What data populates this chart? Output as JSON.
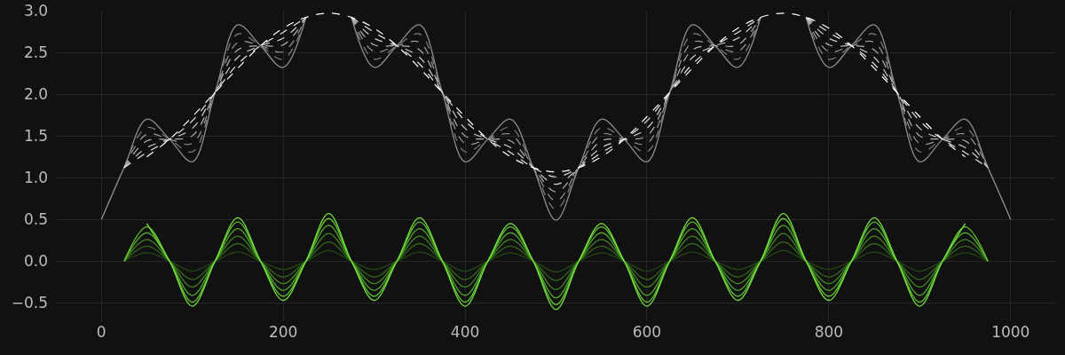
{
  "chart_data": {
    "type": "line",
    "xlim": [
      -50,
      1050
    ],
    "ylim": [
      -0.72,
      3.0
    ],
    "xticks": [
      0,
      200,
      400,
      600,
      800,
      1000
    ],
    "yticks": [
      {
        "value": -0.5,
        "label": "−0.5"
      },
      {
        "value": 0,
        "label": "0.0"
      },
      {
        "value": 0.5,
        "label": "0.5"
      },
      {
        "value": 1,
        "label": "1.0"
      },
      {
        "value": 1.5,
        "label": "1.5"
      },
      {
        "value": 2,
        "label": "2.0"
      },
      {
        "value": 2.5,
        "label": "2.5"
      },
      {
        "value": 3,
        "label": "3.0"
      }
    ],
    "grid": true,
    "series": [
      {
        "color": "#8c8c8c",
        "line_style": "solid",
        "x": [
          0,
          25,
          50,
          75,
          100,
          125,
          150,
          175,
          200,
          225,
          250,
          275,
          300,
          325,
          350,
          375,
          400,
          425,
          450,
          475,
          500,
          525,
          550,
          575,
          600,
          625,
          650,
          675,
          700,
          725,
          750,
          775,
          800,
          825,
          850,
          875,
          900,
          925,
          950,
          975,
          1000
        ],
        "values": [
          0.5,
          1.12,
          1.7,
          1.46,
          1.19,
          2.02,
          2.83,
          2.58,
          2.32,
          2.92,
          null,
          2.92,
          2.32,
          2.58,
          2.83,
          2.02,
          1.19,
          1.46,
          1.7,
          1.12,
          0.49,
          1.12,
          1.7,
          1.46,
          1.19,
          2.02,
          2.83,
          2.58,
          2.32,
          2.92,
          null,
          2.92,
          2.32,
          2.58,
          2.83,
          2.02,
          1.19,
          1.46,
          1.7,
          1.12,
          0.5
        ]
      },
      {
        "color": "#808080",
        "line_style": "dashed",
        "x": [
          25,
          50,
          75,
          100,
          125,
          150,
          175,
          200,
          225,
          250,
          275,
          300,
          325,
          350,
          375,
          400,
          425,
          450,
          475,
          500,
          525,
          550,
          575,
          600,
          625,
          650,
          675,
          700,
          725,
          750,
          775,
          800,
          825,
          850,
          875,
          900,
          925,
          950,
          975
        ],
        "values": [
          1.12,
          1.6,
          1.46,
          1.31,
          2.02,
          2.72,
          2.58,
          2.42,
          2.92,
          null,
          2.92,
          2.42,
          2.58,
          2.72,
          2.02,
          1.31,
          1.46,
          1.6,
          1.12,
          0.62,
          1.12,
          1.6,
          1.46,
          1.31,
          2.02,
          2.72,
          2.58,
          2.42,
          2.92,
          null,
          2.92,
          2.42,
          2.58,
          2.72,
          2.02,
          1.31,
          1.46,
          1.6,
          1.12
        ]
      },
      {
        "color": "#999999",
        "line_style": "dashed",
        "x": [
          25,
          50,
          75,
          100,
          125,
          150,
          175,
          200,
          225,
          250,
          275,
          300,
          325,
          350,
          375,
          400,
          425,
          450,
          475,
          500,
          525,
          550,
          575,
          600,
          625,
          650,
          675,
          700,
          725,
          750,
          775,
          800,
          825,
          850,
          875,
          900,
          925,
          950,
          975
        ],
        "values": [
          1.12,
          1.52,
          1.46,
          1.41,
          2.02,
          2.62,
          2.58,
          2.51,
          2.92,
          null,
          2.92,
          2.51,
          2.58,
          2.62,
          2.02,
          1.41,
          1.46,
          1.52,
          1.12,
          0.72,
          1.12,
          1.52,
          1.46,
          1.41,
          2.02,
          2.62,
          2.58,
          2.51,
          2.92,
          null,
          2.92,
          2.51,
          2.58,
          2.62,
          2.02,
          1.41,
          1.46,
          1.52,
          1.12
        ]
      },
      {
        "color": "#b3b3b3",
        "line_style": "dashed",
        "x": [
          25,
          50,
          75,
          100,
          125,
          150,
          175,
          200,
          225,
          250,
          275,
          300,
          325,
          350,
          375,
          400,
          425,
          450,
          475,
          500,
          525,
          550,
          575,
          600,
          625,
          650,
          675,
          700,
          725,
          750,
          775,
          800,
          825,
          850,
          875,
          900,
          925,
          950,
          975
        ],
        "values": [
          1.12,
          1.44,
          1.46,
          1.5,
          2.02,
          2.53,
          2.58,
          2.59,
          2.92,
          null,
          2.92,
          2.59,
          2.58,
          2.53,
          2.02,
          1.5,
          1.46,
          1.44,
          1.12,
          0.83,
          1.12,
          1.44,
          1.46,
          1.5,
          2.02,
          2.53,
          2.58,
          2.59,
          2.92,
          null,
          2.92,
          2.59,
          2.58,
          2.53,
          2.02,
          1.5,
          1.46,
          1.44,
          1.12
        ]
      },
      {
        "color": "#cccccc",
        "line_style": "dashed",
        "x": [
          25,
          50,
          75,
          100,
          125,
          150,
          175,
          200,
          225,
          250,
          275,
          300,
          325,
          350,
          375,
          400,
          425,
          450,
          475,
          500,
          525,
          550,
          575,
          600,
          625,
          650,
          675,
          700,
          725,
          750,
          775,
          800,
          825,
          850,
          875,
          900,
          925,
          950,
          975
        ],
        "values": [
          1.12,
          1.36,
          1.46,
          1.59,
          2.02,
          2.44,
          2.58,
          2.67,
          2.92,
          null,
          2.92,
          2.67,
          2.58,
          2.44,
          2.02,
          1.59,
          1.46,
          1.36,
          1.12,
          0.92,
          1.12,
          1.36,
          1.46,
          1.59,
          2.02,
          2.44,
          2.58,
          2.67,
          2.92,
          null,
          2.92,
          2.67,
          2.58,
          2.44,
          2.02,
          1.59,
          1.46,
          1.36,
          1.12
        ]
      },
      {
        "color": "#e6e6e6",
        "line_style": "dashed",
        "x": [
          25,
          50,
          75,
          100,
          125,
          150,
          175,
          200,
          225,
          250,
          275,
          300,
          325,
          350,
          375,
          400,
          425,
          450,
          475,
          500,
          525,
          550,
          575,
          600,
          625,
          650,
          675,
          700,
          725,
          750,
          775,
          800,
          825,
          850,
          875,
          900,
          925,
          950,
          975
        ],
        "values": [
          1.12,
          1.3,
          1.46,
          1.68,
          2.02,
          2.36,
          2.58,
          2.74,
          2.92,
          null,
          2.92,
          2.74,
          2.58,
          2.36,
          2.02,
          1.68,
          1.46,
          1.3,
          1.12,
          1.01,
          1.12,
          1.3,
          1.46,
          1.68,
          2.02,
          2.36,
          2.58,
          2.74,
          2.92,
          null,
          2.92,
          2.74,
          2.58,
          2.36,
          2.02,
          1.68,
          1.46,
          1.3,
          1.12
        ]
      },
      {
        "color": "#ffffff",
        "line_style": "dashed",
        "x": [
          50,
          75,
          100,
          125,
          150,
          175,
          200,
          225,
          250,
          275,
          300,
          325,
          350,
          375,
          400,
          425,
          450,
          475,
          500,
          525,
          550,
          575,
          600,
          625,
          650,
          675,
          700,
          725,
          750,
          775,
          800,
          825,
          850,
          875,
          900,
          925,
          950
        ],
        "values": [
          1.25,
          1.46,
          1.73,
          2.02,
          2.31,
          2.58,
          2.79,
          2.92,
          2.97,
          2.92,
          2.79,
          2.58,
          2.31,
          2.02,
          1.73,
          1.46,
          1.25,
          1.12,
          1.07,
          1.12,
          1.25,
          1.46,
          1.73,
          2.02,
          2.31,
          2.58,
          2.79,
          2.92,
          2.97,
          2.92,
          2.79,
          2.58,
          2.31,
          2.02,
          1.73,
          1.46,
          1.25
        ]
      },
      {
        "color": "#244814",
        "line_style": "solid",
        "x": [
          25,
          50,
          75,
          100,
          125,
          150,
          175,
          200,
          225,
          250,
          275,
          300,
          325,
          350,
          375,
          400,
          425,
          450,
          475,
          500,
          525,
          550,
          575,
          600,
          625,
          650,
          675,
          700,
          725,
          750,
          775,
          800,
          825,
          850,
          875,
          900,
          925,
          950,
          975
        ],
        "values": [
          0,
          0.1,
          0,
          -0.12,
          0,
          0.11,
          0,
          -0.1,
          0,
          0.13,
          0,
          -0.1,
          0,
          0.11,
          0,
          -0.12,
          0,
          0.1,
          0,
          -0.13,
          0,
          0.1,
          0,
          -0.12,
          0,
          0.11,
          0,
          -0.1,
          0,
          0.13,
          0,
          -0.1,
          0,
          0.11,
          0,
          -0.12,
          0,
          0.1,
          0
        ]
      },
      {
        "color": "#33671c",
        "line_style": "solid",
        "x": [
          25,
          50,
          75,
          100,
          125,
          150,
          175,
          200,
          225,
          250,
          275,
          300,
          325,
          350,
          375,
          400,
          425,
          450,
          475,
          500,
          525,
          550,
          575,
          600,
          625,
          650,
          675,
          700,
          725,
          750,
          775,
          800,
          825,
          850,
          875,
          900,
          925,
          950,
          975
        ],
        "values": [
          0,
          0.18,
          0,
          -0.22,
          0,
          0.21,
          0,
          -0.19,
          0,
          0.23,
          0,
          -0.19,
          0,
          0.21,
          0,
          -0.22,
          0,
          0.18,
          0,
          -0.23,
          0,
          0.18,
          0,
          -0.22,
          0,
          0.21,
          0,
          -0.19,
          0,
          0.23,
          0,
          -0.19,
          0,
          0.21,
          0,
          -0.22,
          0,
          0.18,
          0
        ]
      },
      {
        "color": "#428624",
        "line_style": "solid",
        "x": [
          25,
          50,
          75,
          100,
          125,
          150,
          175,
          200,
          225,
          250,
          275,
          300,
          325,
          350,
          375,
          400,
          425,
          450,
          475,
          500,
          525,
          550,
          575,
          600,
          625,
          650,
          675,
          700,
          725,
          750,
          775,
          800,
          825,
          850,
          875,
          900,
          925,
          950,
          975
        ],
        "values": [
          0,
          0.26,
          0,
          -0.31,
          0,
          0.3,
          0,
          -0.27,
          0,
          0.33,
          0,
          -0.27,
          0,
          0.3,
          0,
          -0.31,
          0,
          0.26,
          0,
          -0.34,
          0,
          0.26,
          0,
          -0.31,
          0,
          0.3,
          0,
          -0.27,
          0,
          0.33,
          0,
          -0.27,
          0,
          0.3,
          0,
          -0.31,
          0,
          0.26,
          0
        ]
      },
      {
        "color": "#52a52c",
        "line_style": "solid",
        "x": [
          25,
          50,
          75,
          100,
          125,
          150,
          175,
          200,
          225,
          250,
          275,
          300,
          325,
          350,
          375,
          400,
          425,
          450,
          475,
          500,
          525,
          550,
          575,
          600,
          625,
          650,
          675,
          700,
          725,
          750,
          775,
          800,
          825,
          850,
          875,
          900,
          925,
          950,
          975
        ],
        "values": [
          0,
          0.34,
          0,
          -0.41,
          0,
          0.39,
          0,
          -0.35,
          0,
          0.43,
          0,
          -0.35,
          0,
          0.39,
          0,
          -0.41,
          0,
          0.34,
          0,
          -0.44,
          0,
          0.34,
          0,
          -0.41,
          0,
          0.39,
          0,
          -0.35,
          0,
          0.43,
          0,
          -0.35,
          0,
          0.39,
          0,
          -0.41,
          0,
          0.34,
          0
        ]
      },
      {
        "color": "#62c434",
        "line_style": "solid",
        "x": [
          25,
          50,
          75,
          100,
          125,
          150,
          175,
          200,
          225,
          250,
          275,
          300,
          325,
          350,
          375,
          400,
          425,
          450,
          475,
          500,
          525,
          550,
          575,
          600,
          625,
          650,
          675,
          700,
          725,
          750,
          775,
          800,
          825,
          850,
          875,
          900,
          925,
          950,
          975
        ],
        "values": [
          0,
          0.41,
          0,
          -0.49,
          0,
          0.47,
          0,
          -0.42,
          0,
          0.51,
          0,
          -0.42,
          0,
          0.47,
          0,
          -0.49,
          0,
          0.41,
          0,
          -0.52,
          0,
          0.41,
          0,
          -0.49,
          0,
          0.47,
          0,
          -0.42,
          0,
          0.51,
          0,
          -0.42,
          0,
          0.47,
          0,
          -0.49,
          0,
          0.41,
          0
        ]
      },
      {
        "color": "#72e23c",
        "line_style": "solid",
        "x": [
          50,
          75,
          100,
          125,
          150,
          175,
          200,
          225,
          250,
          275,
          300,
          325,
          350,
          375,
          400,
          425,
          450,
          475,
          500,
          525,
          550,
          575,
          600,
          625,
          650,
          675,
          700,
          725,
          750,
          775,
          800,
          825,
          850,
          875,
          900,
          925,
          950
        ],
        "values": [
          0.45,
          0,
          -0.54,
          0,
          0.52,
          0,
          -0.47,
          0,
          0.57,
          0,
          -0.47,
          0,
          0.52,
          0,
          -0.54,
          0,
          0.45,
          0,
          -0.58,
          0,
          0.45,
          0,
          -0.54,
          0,
          0.52,
          0,
          -0.47,
          0,
          0.57,
          0,
          -0.47,
          0,
          0.52,
          0,
          -0.54,
          0,
          0.45
        ]
      }
    ]
  }
}
